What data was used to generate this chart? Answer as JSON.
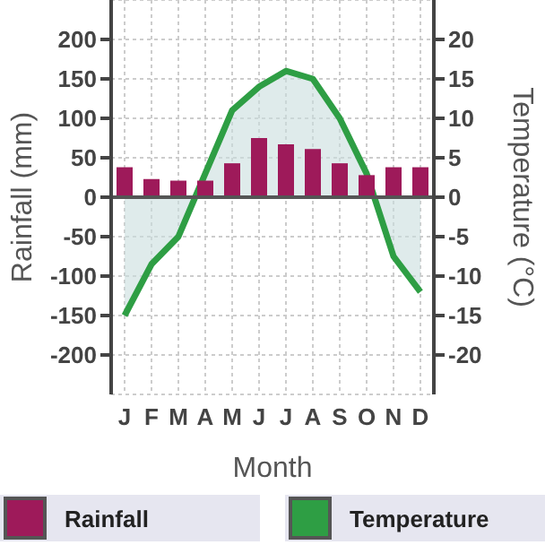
{
  "chart_data": {
    "type": "bar",
    "xlabel": "Month",
    "ylabel": "Rainfall (mm)",
    "y2label": "Temperature (°C)",
    "categories": [
      "J",
      "F",
      "M",
      "A",
      "M",
      "J",
      "J",
      "A",
      "S",
      "O",
      "N",
      "D"
    ],
    "series": [
      {
        "name": "Rainfall",
        "color": "#9e1a5a",
        "values": [
          38,
          23,
          21,
          21,
          43,
          75,
          67,
          61,
          43,
          28,
          38,
          38
        ]
      },
      {
        "name": "Temperature",
        "type": "area",
        "axis": "y2",
        "color": "#2e9e44",
        "values": [
          -15,
          -8.5,
          -5,
          3,
          11,
          14,
          16,
          15,
          10,
          3,
          -7.5,
          -12
        ]
      }
    ],
    "ylim": [
      -250,
      250
    ],
    "yticks": [
      -200,
      -150,
      -100,
      -50,
      0,
      50,
      100,
      150,
      200
    ],
    "y2lim": [
      -25,
      25
    ],
    "y2ticks": [
      -20,
      -15,
      -10,
      -5,
      0,
      5,
      10,
      15,
      20
    ],
    "grid": true,
    "legend": "bottom"
  }
}
